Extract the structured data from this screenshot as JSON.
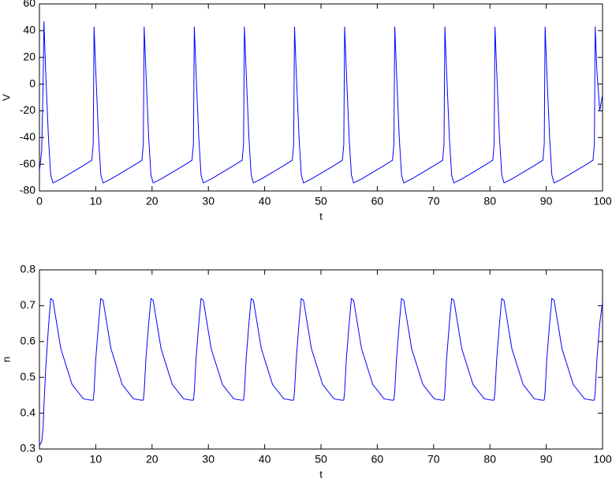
{
  "chart_data": [
    {
      "type": "line",
      "xlabel": "t",
      "ylabel": "V",
      "color": "#0000ff",
      "xlim": [
        0,
        100
      ],
      "xticks": [
        0,
        10,
        20,
        30,
        40,
        50,
        60,
        70,
        80,
        90,
        100
      ],
      "ylim": [
        -80,
        60
      ],
      "yticks": [
        -80,
        -60,
        -40,
        -20,
        0,
        20,
        40,
        60
      ],
      "x": [
        0,
        0.4,
        0.65,
        0.8,
        1.1,
        1.6,
        2.0,
        2.4,
        3.8,
        5.8,
        7.8,
        9.3,
        9.55,
        9.7,
        10.0,
        10.5,
        10.9,
        11.3,
        12.7,
        14.7,
        16.7,
        18.2,
        18.45,
        18.6,
        18.9,
        19.4,
        19.8,
        20.2,
        21.6,
        23.6,
        25.6,
        27.1,
        27.35,
        27.5,
        27.8,
        28.3,
        28.7,
        29.1,
        30.5,
        32.5,
        34.5,
        36.0,
        36.25,
        36.4,
        36.7,
        37.2,
        37.6,
        38.0,
        39.4,
        41.4,
        43.4,
        44.9,
        45.15,
        45.3,
        45.6,
        46.1,
        46.5,
        46.9,
        48.3,
        50.3,
        52.3,
        53.8,
        54.05,
        54.2,
        54.5,
        55.0,
        55.4,
        55.8,
        57.2,
        59.2,
        61.2,
        62.7,
        62.95,
        63.1,
        63.4,
        63.9,
        64.3,
        64.7,
        66.1,
        68.1,
        70.1,
        71.6,
        71.85,
        72.0,
        72.3,
        72.8,
        73.2,
        73.6,
        75.0,
        77.0,
        79.0,
        80.5,
        80.75,
        80.9,
        81.2,
        81.7,
        82.1,
        82.5,
        83.9,
        85.9,
        87.9,
        89.4,
        89.65,
        89.8,
        90.1,
        90.6,
        91.0,
        91.4,
        92.8,
        94.8,
        96.8,
        98.3,
        98.55,
        98.7,
        99.0,
        99.5,
        100
      ],
      "values": [
        -65,
        -50,
        0,
        47,
        10,
        -40,
        -68,
        -74,
        -71,
        -66,
        -61,
        -57,
        -45,
        43,
        10,
        -40,
        -68,
        -74,
        -71,
        -66,
        -61,
        -57,
        -45,
        43,
        10,
        -40,
        -68,
        -74,
        -71,
        -66,
        -61,
        -57,
        -45,
        43,
        10,
        -40,
        -68,
        -74,
        -71,
        -66,
        -61,
        -57,
        -45,
        43,
        10,
        -40,
        -68,
        -74,
        -71,
        -66,
        -61,
        -57,
        -45,
        43,
        10,
        -40,
        -68,
        -74,
        -71,
        -66,
        -61,
        -57,
        -45,
        43,
        10,
        -40,
        -68,
        -74,
        -71,
        -66,
        -61,
        -57,
        -45,
        43,
        10,
        -40,
        -68,
        -74,
        -71,
        -66,
        -61,
        -57,
        -45,
        43,
        10,
        -40,
        -68,
        -74,
        -71,
        -66,
        -61,
        -57,
        -45,
        43,
        10,
        -40,
        -68,
        -74,
        -71,
        -66,
        -61,
        -57,
        -45,
        43,
        10,
        -40,
        -68,
        -74,
        -71,
        -66,
        -61,
        -57,
        -45,
        43,
        10,
        -20,
        -8
      ]
    },
    {
      "type": "line",
      "xlabel": "t",
      "ylabel": "n",
      "color": "#0000ff",
      "xlim": [
        0,
        100
      ],
      "xticks": [
        0,
        10,
        20,
        30,
        40,
        50,
        60,
        70,
        80,
        90,
        100
      ],
      "ylim": [
        0.3,
        0.8
      ],
      "yticks": [
        0.3,
        0.4,
        0.5,
        0.6,
        0.7,
        0.8
      ],
      "x": [
        0,
        0.4,
        0.65,
        0.8,
        1.1,
        1.6,
        2.0,
        2.4,
        3.8,
        5.8,
        7.8,
        9.3,
        9.55,
        9.7,
        10.0,
        10.5,
        10.9,
        11.3,
        12.7,
        14.7,
        16.7,
        18.2,
        18.45,
        18.6,
        18.9,
        19.4,
        19.8,
        20.2,
        21.6,
        23.6,
        25.6,
        27.1,
        27.35,
        27.5,
        27.8,
        28.3,
        28.7,
        29.1,
        30.5,
        32.5,
        34.5,
        36.0,
        36.25,
        36.4,
        36.7,
        37.2,
        37.6,
        38.0,
        39.4,
        41.4,
        43.4,
        44.9,
        45.15,
        45.3,
        45.6,
        46.1,
        46.5,
        46.9,
        48.3,
        50.3,
        52.3,
        53.8,
        54.05,
        54.2,
        54.5,
        55.0,
        55.4,
        55.8,
        57.2,
        59.2,
        61.2,
        62.7,
        62.95,
        63.1,
        63.4,
        63.9,
        64.3,
        64.7,
        66.1,
        68.1,
        70.1,
        71.6,
        71.85,
        72.0,
        72.3,
        72.8,
        73.2,
        73.6,
        75.0,
        77.0,
        79.0,
        80.5,
        80.75,
        80.9,
        81.2,
        81.7,
        82.1,
        82.5,
        83.9,
        85.9,
        87.9,
        89.4,
        89.65,
        89.8,
        90.1,
        90.6,
        91.0,
        91.4,
        92.8,
        94.8,
        96.8,
        98.3,
        98.55,
        98.7,
        99.0,
        99.5,
        100
      ],
      "values": [
        0.31,
        0.32,
        0.36,
        0.42,
        0.52,
        0.64,
        0.72,
        0.715,
        0.58,
        0.48,
        0.44,
        0.436,
        0.437,
        0.46,
        0.55,
        0.65,
        0.72,
        0.715,
        0.58,
        0.48,
        0.44,
        0.436,
        0.437,
        0.46,
        0.55,
        0.65,
        0.72,
        0.715,
        0.58,
        0.48,
        0.44,
        0.436,
        0.437,
        0.46,
        0.55,
        0.65,
        0.72,
        0.715,
        0.58,
        0.48,
        0.44,
        0.436,
        0.437,
        0.46,
        0.55,
        0.65,
        0.72,
        0.715,
        0.58,
        0.48,
        0.44,
        0.436,
        0.437,
        0.46,
        0.55,
        0.65,
        0.72,
        0.715,
        0.58,
        0.48,
        0.44,
        0.436,
        0.437,
        0.46,
        0.55,
        0.65,
        0.72,
        0.715,
        0.58,
        0.48,
        0.44,
        0.436,
        0.437,
        0.46,
        0.55,
        0.65,
        0.72,
        0.715,
        0.58,
        0.48,
        0.44,
        0.436,
        0.437,
        0.46,
        0.55,
        0.65,
        0.72,
        0.715,
        0.58,
        0.48,
        0.44,
        0.436,
        0.437,
        0.46,
        0.55,
        0.65,
        0.72,
        0.715,
        0.58,
        0.48,
        0.44,
        0.436,
        0.437,
        0.46,
        0.55,
        0.65,
        0.72,
        0.715,
        0.58,
        0.48,
        0.44,
        0.436,
        0.437,
        0.46,
        0.55,
        0.65,
        0.71
      ]
    }
  ]
}
